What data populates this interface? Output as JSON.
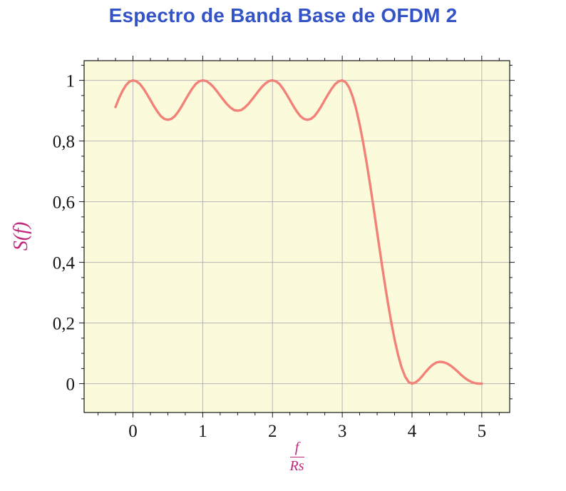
{
  "chart_data": {
    "type": "line",
    "title": "Espectro de Banda Base de OFDM 2",
    "ylabel": "S(f)",
    "xlabel": "f/Rs",
    "xlabel_numerator": "f",
    "xlabel_denominator": "Rs",
    "grid": true,
    "legend": "none",
    "xlim": [
      -0.25,
      5
    ],
    "ylim": [
      0,
      1
    ],
    "xlim_display": [
      -0.7,
      5.4
    ],
    "ylim_display": [
      -0.095,
      1.065
    ],
    "x_minor_step": 0.25,
    "y_minor_step": 0.05,
    "x_ticks": [
      {
        "v": 0,
        "label": "0"
      },
      {
        "v": 1,
        "label": "1"
      },
      {
        "v": 2,
        "label": "2"
      },
      {
        "v": 3,
        "label": "3"
      },
      {
        "v": 4,
        "label": "4"
      },
      {
        "v": 5,
        "label": "5"
      }
    ],
    "y_ticks": [
      {
        "v": 0,
        "label": "0"
      },
      {
        "v": 0.2,
        "label": "0,2"
      },
      {
        "v": 0.4,
        "label": "0,4"
      },
      {
        "v": 0.6,
        "label": "0,6"
      },
      {
        "v": 0.8,
        "label": "0,8"
      },
      {
        "v": 1,
        "label": "1"
      }
    ],
    "colors": {
      "title": "#3353c6",
      "curve": "#f28178",
      "labels": "#c0267c",
      "grid": "#b5b5b5",
      "plot_bg": "#fbfbdc",
      "tick_text": "#161616",
      "frame": "#000000"
    },
    "series": [
      {
        "name": "S(f)",
        "points": [
          [
            -0.25,
            0.912
          ],
          [
            -0.2,
            0.941
          ],
          [
            -0.15,
            0.965
          ],
          [
            -0.1,
            0.984
          ],
          [
            -0.05,
            0.996
          ],
          [
            0,
            1
          ],
          [
            0.05,
            0.997
          ],
          [
            0.1,
            0.988
          ],
          [
            0.15,
            0.973
          ],
          [
            0.2,
            0.955
          ],
          [
            0.25,
            0.935
          ],
          [
            0.3,
            0.915
          ],
          [
            0.35,
            0.897
          ],
          [
            0.4,
            0.882
          ],
          [
            0.45,
            0.873
          ],
          [
            0.5,
            0.87
          ],
          [
            0.55,
            0.873
          ],
          [
            0.6,
            0.882
          ],
          [
            0.65,
            0.897
          ],
          [
            0.7,
            0.915
          ],
          [
            0.75,
            0.935
          ],
          [
            0.8,
            0.955
          ],
          [
            0.85,
            0.973
          ],
          [
            0.9,
            0.988
          ],
          [
            0.95,
            0.997
          ],
          [
            1,
            1
          ],
          [
            1.05,
            0.998
          ],
          [
            1.1,
            0.99
          ],
          [
            1.15,
            0.979
          ],
          [
            1.2,
            0.965
          ],
          [
            1.25,
            0.95
          ],
          [
            1.3,
            0.935
          ],
          [
            1.35,
            0.921
          ],
          [
            1.4,
            0.91
          ],
          [
            1.45,
            0.902
          ],
          [
            1.5,
            0.9
          ],
          [
            1.55,
            0.902
          ],
          [
            1.6,
            0.91
          ],
          [
            1.65,
            0.921
          ],
          [
            1.7,
            0.935
          ],
          [
            1.75,
            0.95
          ],
          [
            1.8,
            0.965
          ],
          [
            1.85,
            0.979
          ],
          [
            1.9,
            0.99
          ],
          [
            1.95,
            0.998
          ],
          [
            2,
            1
          ],
          [
            2.05,
            0.997
          ],
          [
            2.1,
            0.988
          ],
          [
            2.15,
            0.973
          ],
          [
            2.2,
            0.955
          ],
          [
            2.25,
            0.935
          ],
          [
            2.3,
            0.915
          ],
          [
            2.35,
            0.897
          ],
          [
            2.4,
            0.882
          ],
          [
            2.45,
            0.873
          ],
          [
            2.5,
            0.87
          ],
          [
            2.55,
            0.873
          ],
          [
            2.6,
            0.882
          ],
          [
            2.65,
            0.897
          ],
          [
            2.7,
            0.915
          ],
          [
            2.75,
            0.935
          ],
          [
            2.8,
            0.955
          ],
          [
            2.85,
            0.973
          ],
          [
            2.9,
            0.988
          ],
          [
            2.95,
            0.997
          ],
          [
            3,
            1
          ],
          [
            3.05,
            0.994
          ],
          [
            3.1,
            0.976
          ],
          [
            3.15,
            0.946
          ],
          [
            3.2,
            0.905
          ],
          [
            3.25,
            0.854
          ],
          [
            3.3,
            0.794
          ],
          [
            3.35,
            0.727
          ],
          [
            3.4,
            0.655
          ],
          [
            3.45,
            0.578
          ],
          [
            3.5,
            0.5
          ],
          [
            3.55,
            0.422
          ],
          [
            3.6,
            0.345
          ],
          [
            3.65,
            0.273
          ],
          [
            3.7,
            0.206
          ],
          [
            3.75,
            0.146
          ],
          [
            3.8,
            0.095
          ],
          [
            3.85,
            0.054
          ],
          [
            3.9,
            0.024
          ],
          [
            3.95,
            0.006
          ],
          [
            4,
            0
          ],
          [
            4.05,
            0.004
          ],
          [
            4.1,
            0.013
          ],
          [
            4.15,
            0.026
          ],
          [
            4.2,
            0.04
          ],
          [
            4.25,
            0.053
          ],
          [
            4.3,
            0.063
          ],
          [
            4.35,
            0.07
          ],
          [
            4.4,
            0.072
          ],
          [
            4.45,
            0.071
          ],
          [
            4.5,
            0.067
          ],
          [
            4.55,
            0.06
          ],
          [
            4.6,
            0.051
          ],
          [
            4.65,
            0.041
          ],
          [
            4.7,
            0.03
          ],
          [
            4.75,
            0.02
          ],
          [
            4.8,
            0.012
          ],
          [
            4.85,
            0.006
          ],
          [
            4.9,
            0.002
          ],
          [
            4.95,
            0
          ],
          [
            5,
            0
          ]
        ]
      }
    ]
  }
}
